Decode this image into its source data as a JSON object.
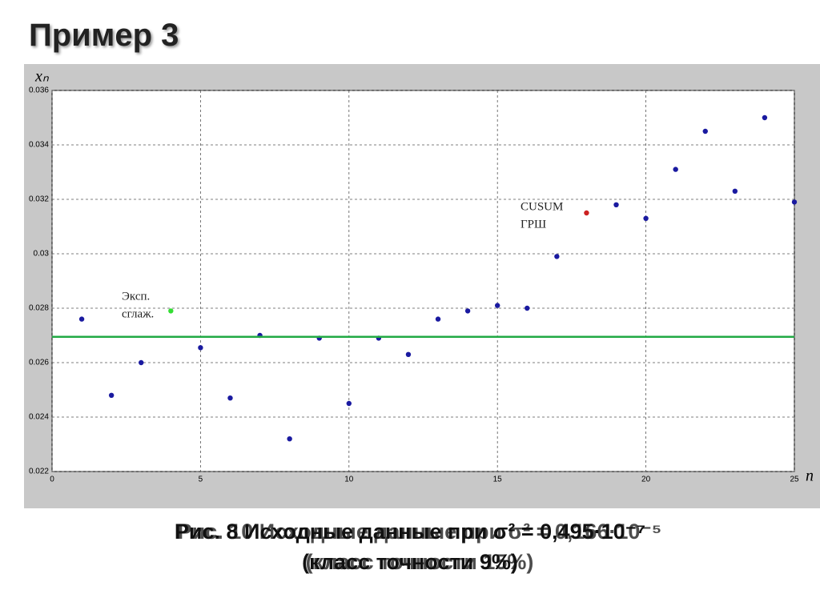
{
  "title": "Пример 3",
  "chart_data": {
    "type": "scatter",
    "y_label": "xₙ",
    "x_label": "n",
    "xlim": [
      0,
      25
    ],
    "xticks": [
      0,
      5,
      10,
      15,
      20,
      25
    ],
    "ylim": [
      0.022,
      0.036
    ],
    "yticks": [
      0.022,
      0.024,
      0.026,
      0.028,
      0.03,
      0.032,
      0.034,
      0.036
    ],
    "grid": true,
    "series": [
      {
        "color": "#1a1aa0",
        "mode": "markers",
        "x": [
          1,
          2,
          3,
          5,
          6,
          7,
          8,
          9,
          10,
          11,
          12,
          13,
          14,
          15,
          16,
          17,
          19,
          20,
          21,
          22,
          23,
          24,
          25
        ],
        "values": [
          0.0276,
          0.0248,
          0.026,
          0.02655,
          0.0247,
          0.027,
          0.0232,
          0.0269,
          0.0245,
          0.0269,
          0.0263,
          0.0276,
          0.0279,
          0.0281,
          0.028,
          0.0299,
          0.0318,
          0.0313,
          0.0331,
          0.0345,
          0.0323,
          0.035,
          0.0319
        ]
      },
      {
        "color": "#22aa44",
        "mode": "line",
        "x": [
          0,
          25
        ],
        "values": [
          0.02695,
          0.02695
        ]
      },
      {
        "color": "#33dd33",
        "mode": "markers",
        "x": [
          4
        ],
        "values": [
          0.0279
        ]
      },
      {
        "color": "#cc2222",
        "mode": "markers",
        "x": [
          18
        ],
        "values": [
          0.0315
        ]
      }
    ],
    "annotations": [
      [
        "Эксп.",
        "сглаж."
      ],
      [
        "CUSUM",
        "ГРШ"
      ]
    ]
  },
  "captions": [
    [
      "Рис. 8 Исходные данные при σ² = 0,495·10⁻⁷",
      "(класс точности 9%)"
    ],
    [
      "Рис. 10 Исходные данные при σ² = 0,166·10⁻⁵",
      "(класс точности 15%)"
    ]
  ]
}
